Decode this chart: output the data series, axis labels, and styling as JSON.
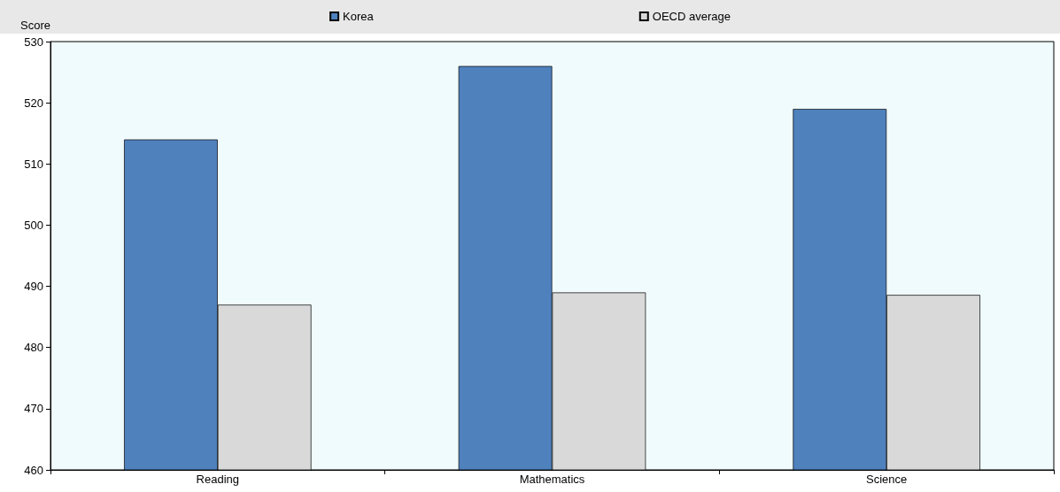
{
  "chart_data": {
    "type": "bar",
    "ylabel": "Score",
    "categories": [
      "Reading",
      "Mathematics",
      "Science"
    ],
    "series": [
      {
        "name": "Korea",
        "color": "#4f81bd",
        "values": [
          514,
          526,
          519
        ]
      },
      {
        "name": "OECD average",
        "color": "#d9d9d9",
        "values": [
          487,
          489,
          488.6
        ]
      }
    ],
    "ylim": [
      460,
      530
    ],
    "yticks": [
      460,
      470,
      480,
      490,
      500,
      510,
      520,
      530
    ],
    "grid": false,
    "legend": "top"
  }
}
